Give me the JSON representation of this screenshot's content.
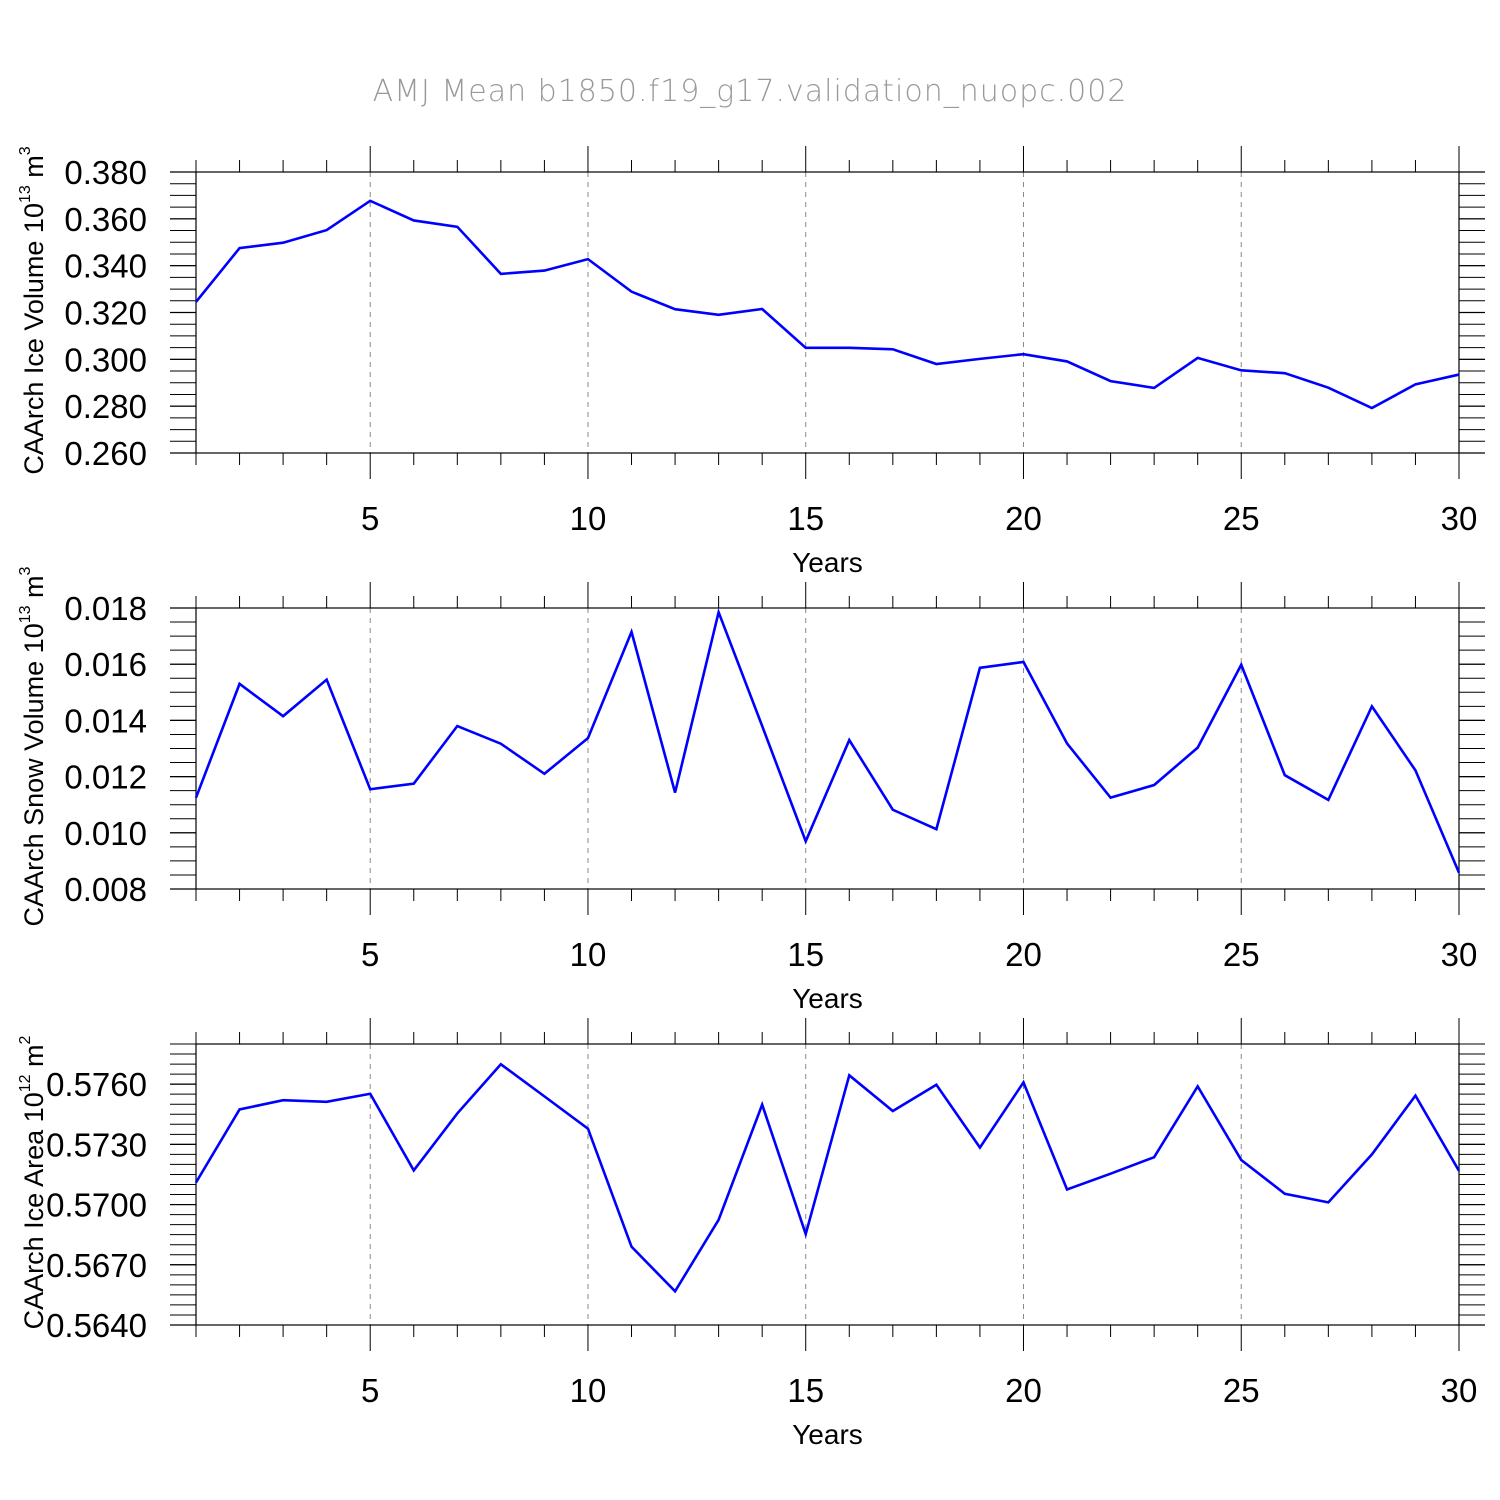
{
  "figure_title": "AMJ Mean b1850.f19_g17.validation_nuopc.002",
  "colors": {
    "line": "#0000ff",
    "axis": "#000000",
    "grid": "#888888",
    "title": "#999999"
  },
  "chart_data": [
    {
      "type": "line",
      "title": "AMJ Mean b1850.f19_g17.validation_nuopc.002",
      "xlabel": "Years",
      "ylabel": {
        "base": "CAArch Ice Volume 10",
        "sup": "13",
        "unit": " m",
        "unit_sup": "3"
      },
      "xlim": [
        1,
        30
      ],
      "ylim": [
        0.26,
        0.38
      ],
      "x_ticks": [
        5,
        10,
        15,
        20,
        25,
        30
      ],
      "x_tick_labels": [
        "5",
        "10",
        "15",
        "20",
        "25",
        "30"
      ],
      "y_ticks": [
        0.26,
        0.28,
        0.3,
        0.32,
        0.34,
        0.36,
        0.38
      ],
      "y_tick_labels": [
        "0.260",
        "0.280",
        "0.300",
        "0.320",
        "0.340",
        "0.360",
        "0.380"
      ],
      "y_minor_step": 0.005,
      "grid": "vertical dashed at major x ticks",
      "x": [
        1,
        2,
        3,
        4,
        5,
        6,
        7,
        8,
        9,
        10,
        11,
        12,
        13,
        14,
        15,
        16,
        17,
        18,
        19,
        20,
        21,
        22,
        23,
        24,
        25,
        26,
        27,
        28,
        29,
        30
      ],
      "series": [
        {
          "name": "CAArch Ice Volume",
          "values": [
            0.3245,
            0.3475,
            0.3498,
            0.3552,
            0.3677,
            0.3593,
            0.3566,
            0.3365,
            0.3379,
            0.3428,
            0.3289,
            0.3214,
            0.319,
            0.3215,
            0.3049,
            0.3049,
            0.3043,
            0.298,
            0.3002,
            0.3022,
            0.2991,
            0.2907,
            0.2878,
            0.3006,
            0.2953,
            0.2941,
            0.2879,
            0.2792,
            0.2893,
            0.2935
          ]
        }
      ]
    },
    {
      "type": "line",
      "xlabel": "Years",
      "ylabel": {
        "base": "CAArch Snow Volume 10",
        "sup": "13",
        "unit": " m",
        "unit_sup": "3"
      },
      "xlim": [
        1,
        30
      ],
      "ylim": [
        0.008,
        0.018
      ],
      "x_ticks": [
        5,
        10,
        15,
        20,
        25,
        30
      ],
      "x_tick_labels": [
        "5",
        "10",
        "15",
        "20",
        "25",
        "30"
      ],
      "y_ticks": [
        0.008,
        0.01,
        0.012,
        0.014,
        0.016,
        0.018
      ],
      "y_tick_labels": [
        "0.008",
        "0.010",
        "0.012",
        "0.014",
        "0.016",
        "0.018"
      ],
      "y_minor_step": 0.0005,
      "grid": "vertical dashed at major x ticks",
      "x": [
        1,
        2,
        3,
        4,
        5,
        6,
        7,
        8,
        9,
        10,
        11,
        12,
        13,
        14,
        15,
        16,
        17,
        18,
        19,
        20,
        21,
        22,
        23,
        24,
        25,
        26,
        27,
        28,
        29,
        30
      ],
      "series": [
        {
          "name": "CAArch Snow Volume",
          "values": [
            0.01125,
            0.0153,
            0.01415,
            0.01545,
            0.01155,
            0.01175,
            0.0138,
            0.01317,
            0.0121,
            0.01337,
            0.01715,
            0.01143,
            0.01785,
            0.0138,
            0.0097,
            0.0133,
            0.01082,
            0.01013,
            0.01587,
            0.01608,
            0.01318,
            0.01125,
            0.0117,
            0.01303,
            0.01598,
            0.01205,
            0.01117,
            0.0145,
            0.01222,
            0.00858
          ]
        }
      ]
    },
    {
      "type": "line",
      "xlabel": "Years",
      "ylabel": {
        "base": "CAArch Ice Area 10",
        "sup": "12",
        "unit": " m",
        "unit_sup": "2"
      },
      "xlim": [
        1,
        30
      ],
      "ylim": [
        0.564,
        0.578
      ],
      "x_ticks": [
        5,
        10,
        15,
        20,
        25,
        30
      ],
      "x_tick_labels": [
        "5",
        "10",
        "15",
        "20",
        "25",
        "30"
      ],
      "y_ticks": [
        0.564,
        0.567,
        0.57,
        0.573,
        0.576
      ],
      "y_tick_labels": [
        "0.5640",
        "0.5670",
        "0.5700",
        "0.5730",
        "0.5760"
      ],
      "y_minor_step": 0.0005,
      "grid": "vertical dashed at major x ticks",
      "x": [
        1,
        2,
        3,
        4,
        5,
        6,
        7,
        8,
        9,
        10,
        11,
        12,
        13,
        14,
        15,
        16,
        17,
        18,
        19,
        20,
        21,
        22,
        23,
        24,
        25,
        26,
        27,
        28,
        29,
        30
      ],
      "series": [
        {
          "name": "CAArch Ice Area",
          "values": [
            0.5711,
            0.57474,
            0.5752,
            0.57512,
            0.57552,
            0.5717,
            0.57454,
            0.57699,
            0.57539,
            0.57378,
            0.5679,
            0.56568,
            0.56924,
            0.57498,
            0.56853,
            0.57644,
            0.57466,
            0.57597,
            0.57284,
            0.57609,
            0.57075,
            0.57154,
            0.57236,
            0.57589,
            0.57222,
            0.57054,
            0.57011,
            0.5725,
            0.57543,
            0.57168
          ]
        }
      ]
    }
  ]
}
